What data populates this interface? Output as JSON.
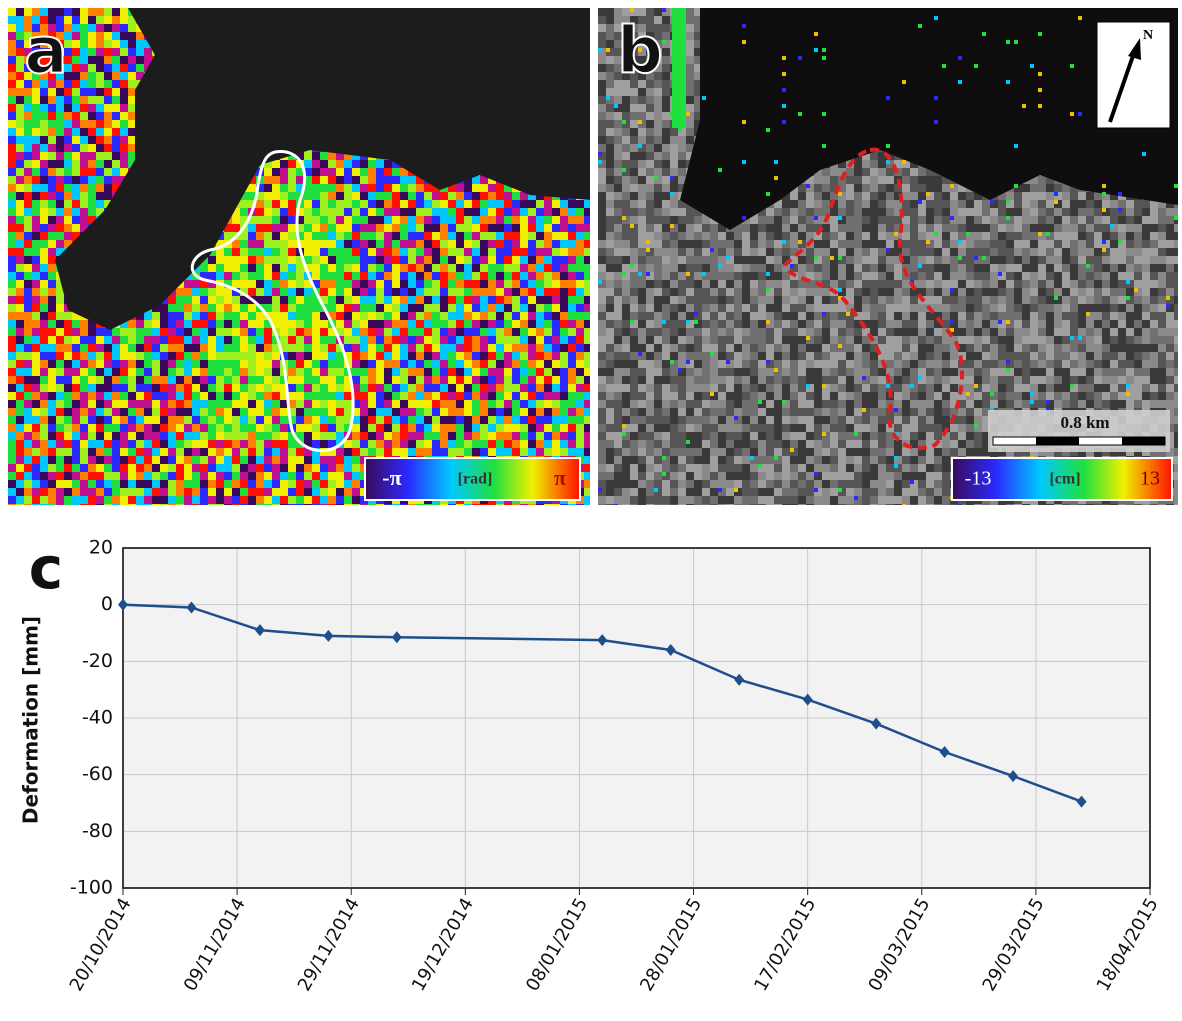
{
  "panels": {
    "a": {
      "label": "a",
      "colorbar": {
        "min": "-π",
        "unit": "[rad]",
        "max": "π"
      }
    },
    "b": {
      "label": "b",
      "colorbar": {
        "min": "-13",
        "unit": "[cm]",
        "max": "13"
      },
      "scale": "0.8 km",
      "north": "N"
    }
  },
  "chart_data": {
    "type": "line",
    "panel_label": "c",
    "y_label": "Deformation [mm]",
    "x": [
      "20/10/2014",
      "01/11/2014",
      "13/11/2014",
      "25/11/2014",
      "07/12/2014",
      "12/01/2015",
      "24/01/2015",
      "05/02/2015",
      "17/02/2015",
      "01/03/2015",
      "13/03/2015",
      "25/03/2015",
      "06/04/2015"
    ],
    "values": [
      0,
      -1,
      -9,
      -11,
      -11.5,
      -12.5,
      -16,
      -26.5,
      -33.5,
      -42,
      -52,
      -60.5,
      -69.5
    ],
    "color": "#1f4e8c",
    "xlim": [
      "20/10/2014",
      "18/04/2015"
    ],
    "xticks": [
      "20/10/2014",
      "09/11/2014",
      "29/11/2014",
      "19/12/2014",
      "08/01/2015",
      "28/01/2015",
      "17/02/2015",
      "09/03/2015",
      "29/03/2015",
      "18/04/2015"
    ],
    "ylim": [
      -100,
      20
    ],
    "yticks": [
      20,
      0,
      -20,
      -40,
      -60,
      -80,
      -100
    ],
    "grid": true
  }
}
